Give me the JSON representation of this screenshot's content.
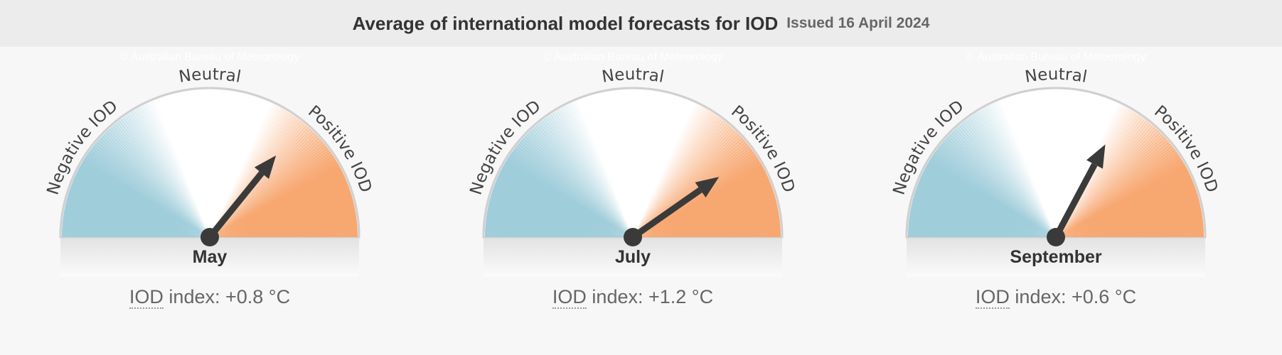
{
  "header": {
    "title": "Average of international model forecasts for IOD",
    "issued": "Issued 16 April 2024"
  },
  "watermark": "© Australian Bureau of Meteorology",
  "labels": {
    "negative": "Negative IOD",
    "neutral": "Neutral",
    "positive": "Positive IOD",
    "index_abbr": "IOD",
    "index_prefix": " index: "
  },
  "colors": {
    "negative": "#9ccbd9",
    "positive": "#f7a46c",
    "needle": "#3a3a3a"
  },
  "chart_data": [
    {
      "type": "gauge",
      "category": "May",
      "value": 0.8,
      "value_label": "+0.8 °C",
      "angle_deg": 51
    },
    {
      "type": "gauge",
      "category": "July",
      "value": 1.2,
      "value_label": "+1.2 °C",
      "angle_deg": 35
    },
    {
      "type": "gauge",
      "category": "September",
      "value": 0.6,
      "value_label": "+0.6 °C",
      "angle_deg": 62
    }
  ]
}
